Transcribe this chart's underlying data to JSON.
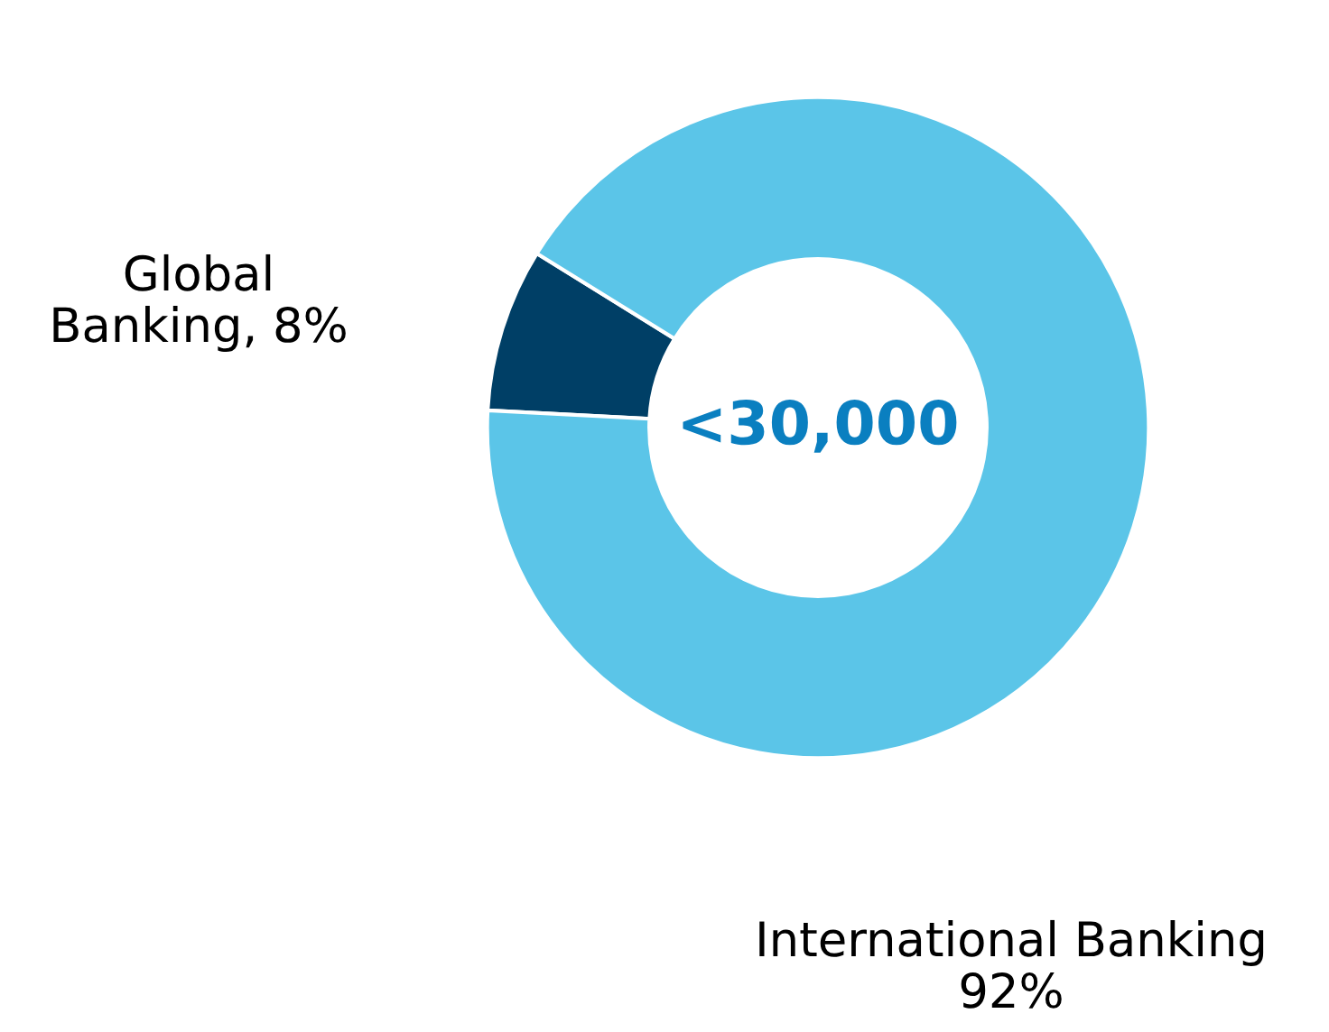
{
  "chart_data": {
    "type": "donut",
    "categories": [
      "Global Banking",
      "International Banking"
    ],
    "values": [
      8,
      92
    ],
    "value_labels": [
      "8%",
      "92%"
    ],
    "colors": [
      "#003f66",
      "#5bc5e8"
    ],
    "annotations": [
      "<30,000"
    ],
    "legend": false
  }
}
